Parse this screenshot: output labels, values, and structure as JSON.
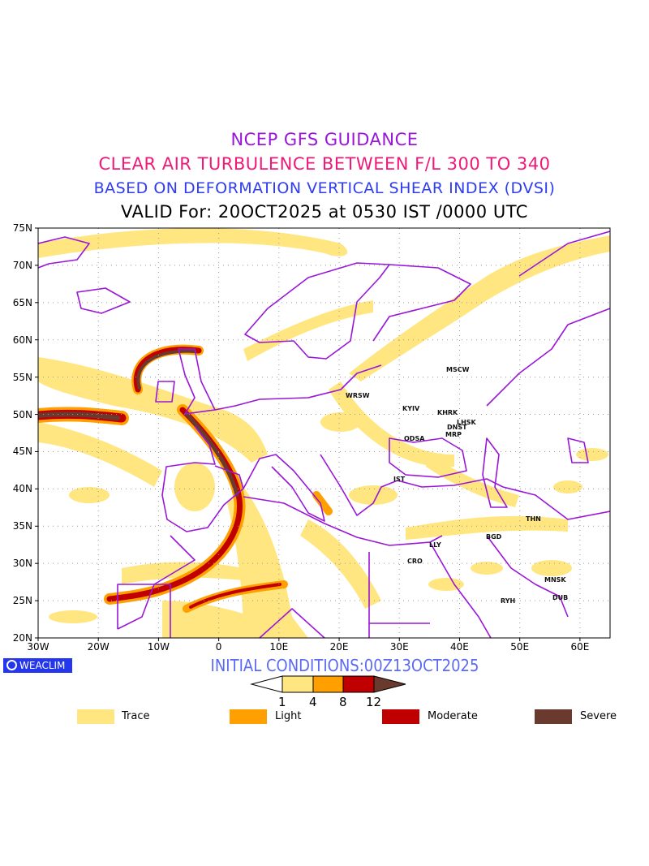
{
  "titles": {
    "line1": "NCEP GFS GUIDANCE",
    "line2": "CLEAR AIR TURBULENCE BETWEEN F/L 300 TO 340",
    "line3": "BASED ON DEFORMATION VERTICAL SHEAR INDEX (DVSI)",
    "line4": "VALID For: 20OCT2025 at 0530 IST /0000 UTC"
  },
  "axes": {
    "lat_labels": [
      "75N",
      "70N",
      "65N",
      "60N",
      "55N",
      "50N",
      "45N",
      "40N",
      "35N",
      "30N",
      "25N",
      "20N"
    ],
    "lon_labels": [
      "30W",
      "20W",
      "10W",
      "0",
      "10E",
      "20E",
      "30E",
      "40E",
      "50E",
      "60E"
    ]
  },
  "cities": [
    "MSCW",
    "WRSW",
    "KYIV",
    "KHRK",
    "LHSK",
    "DNST",
    "MRP",
    "ODSA",
    "IST",
    "THN",
    "BGD",
    "LLY",
    "CRO",
    "MNSK",
    "RYH",
    "DUB"
  ],
  "logo": "WEACLIM",
  "initial_conditions": "INITIAL CONDITIONS:00Z13OCT2025",
  "colorbar": {
    "ticks": [
      "1",
      "4",
      "8",
      "12"
    ],
    "colors": [
      "#ffffff",
      "#ffe680",
      "#ffa000",
      "#c00000",
      "#6b3a2e"
    ]
  },
  "legend": [
    {
      "label": "Trace",
      "color": "#ffe680"
    },
    {
      "label": "Light",
      "color": "#ffa000"
    },
    {
      "label": "Moderate",
      "color": "#c00000"
    },
    {
      "label": "Severe",
      "color": "#6b3a2e"
    }
  ],
  "colors": {
    "border": "#9a16d8",
    "grid": "#999999"
  }
}
